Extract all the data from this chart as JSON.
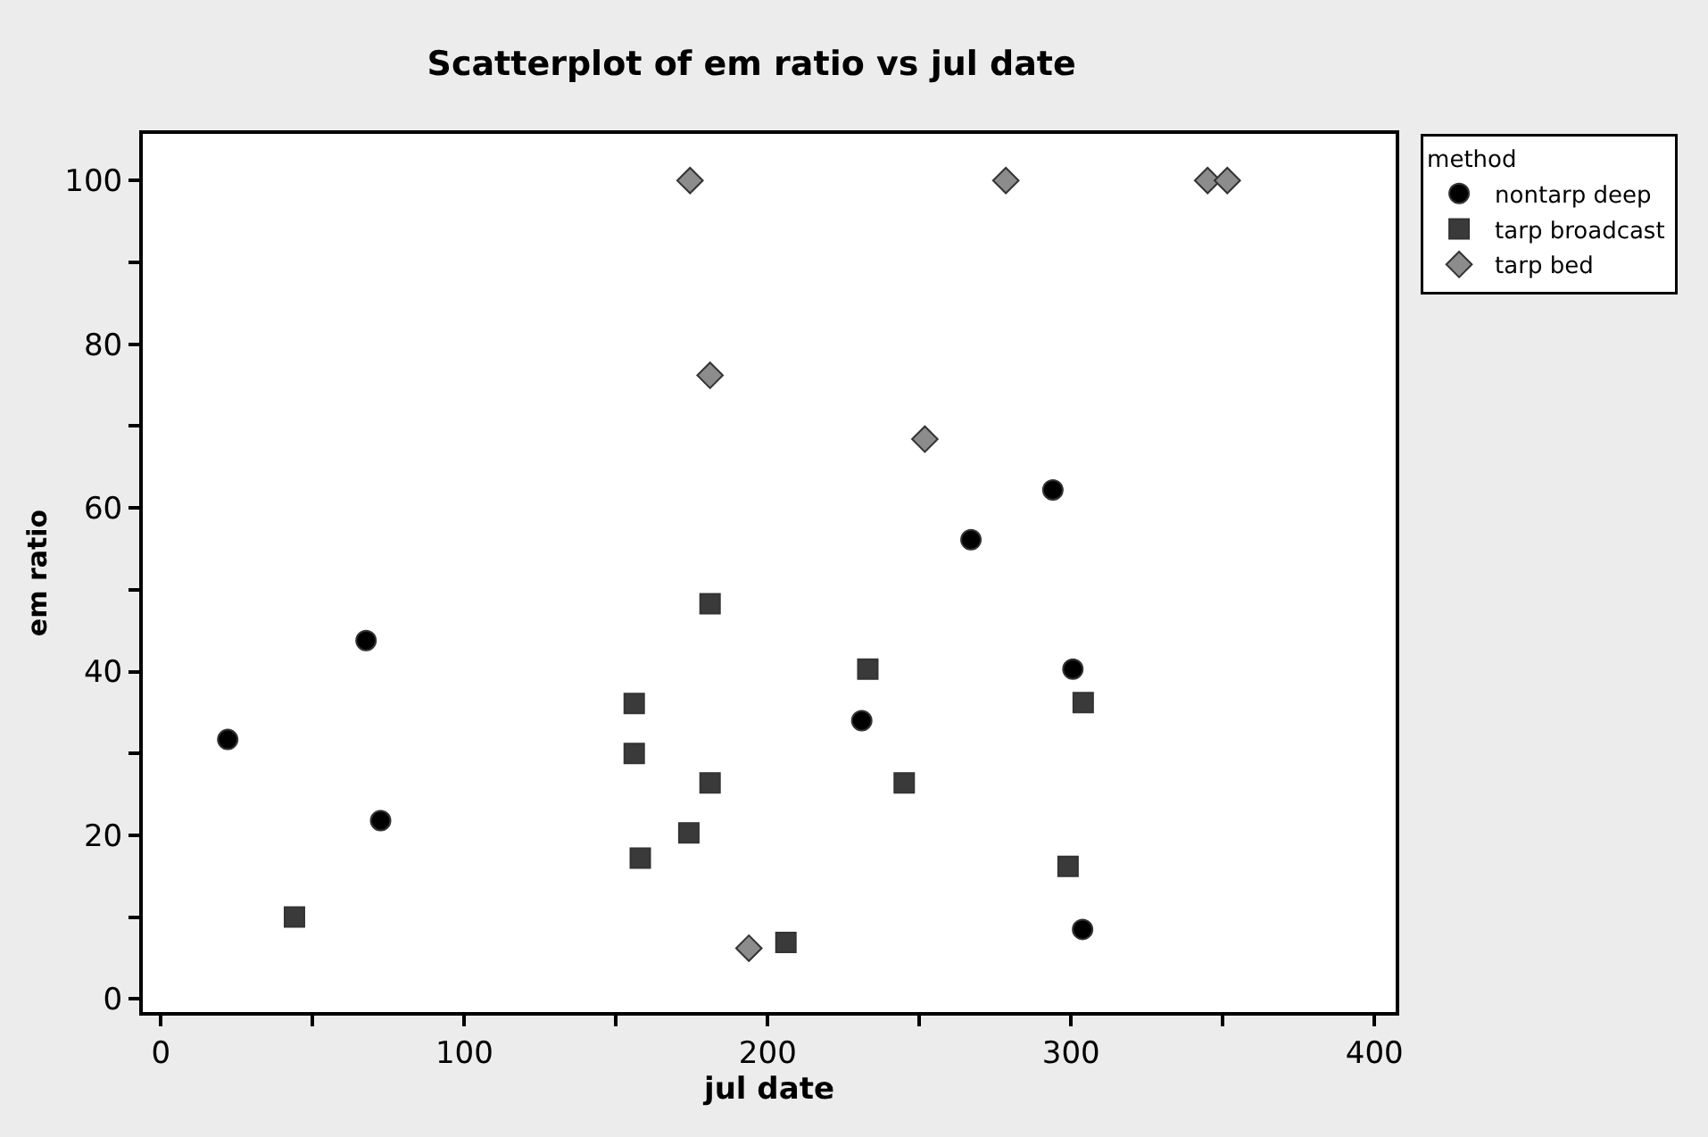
{
  "chart_data": {
    "type": "scatter",
    "title": "Scatterplot of em ratio vs jul date",
    "xlabel": "jul date",
    "ylabel": "em ratio",
    "legend_title": "method",
    "legend": "top right",
    "xlim": [
      -6,
      407
    ],
    "xticks": [
      0,
      {
        "value": 50,
        "label": null
      },
      100,
      {
        "value": 150,
        "label": null
      },
      200,
      {
        "value": 250,
        "label": null
      },
      300,
      {
        "value": 350,
        "label": null
      },
      400
    ],
    "ylim": [
      -1.6,
      105.7
    ],
    "yticks": [
      0,
      {
        "value": 10,
        "label": null
      },
      20,
      {
        "value": 30,
        "label": null
      },
      40,
      {
        "value": 50,
        "label": null
      },
      60,
      {
        "value": 70,
        "label": null
      },
      80,
      {
        "value": 90,
        "label": null
      },
      100
    ],
    "series": [
      {
        "name": "nontarp deep",
        "color": "#000000",
        "marker": "circle",
        "x": [
          22,
          67.6,
          72.4,
          231,
          300.6,
          303.8,
          294,
          267
        ],
        "values": [
          31.7,
          43.8,
          21.8,
          34,
          40.3,
          8.5,
          62.2,
          56.1
        ]
      },
      {
        "name": "tarp broadcast",
        "color": "#3a3a3a",
        "marker": "square",
        "x": [
          44,
          156,
          156,
          158,
          174,
          181,
          181,
          233,
          245,
          206,
          304,
          299
        ],
        "values": [
          10,
          36.1,
          30,
          17.2,
          20.3,
          26.4,
          48.3,
          40.3,
          26.4,
          6.9,
          36.2,
          16.2
        ]
      },
      {
        "name": "tarp bed",
        "color": "#8c8c8c",
        "marker": "diamond",
        "x": [
          174.4,
          181,
          278.5,
          345,
          351.5,
          251.8,
          193.8
        ],
        "values": [
          100,
          76.2,
          100,
          100,
          100,
          68.4,
          6.2
        ]
      }
    ]
  }
}
